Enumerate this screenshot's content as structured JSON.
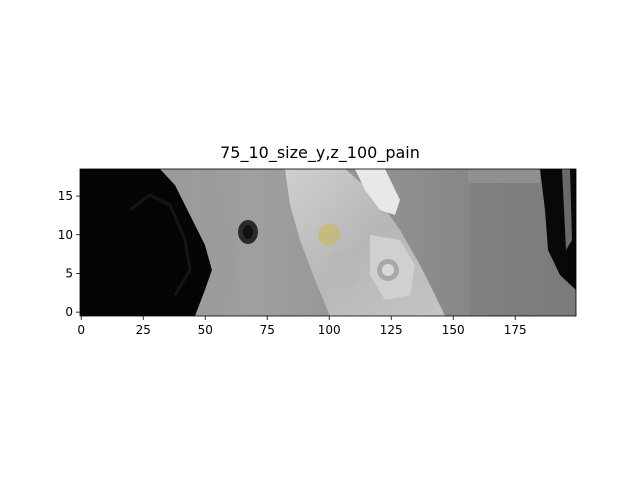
{
  "figure": {
    "title": "75_10_size_y,z_100_pain"
  },
  "axes": {
    "x_ticks": [
      "0",
      "25",
      "50",
      "75",
      "100",
      "125",
      "150",
      "175"
    ],
    "y_ticks": [
      "0",
      "5",
      "10",
      "15"
    ],
    "x_tick_values": [
      0,
      25,
      50,
      75,
      100,
      125,
      150,
      175
    ],
    "y_tick_values": [
      0,
      5,
      10,
      15
    ],
    "xlim": [
      -0.5,
      199.5
    ],
    "ylim": [
      -0.5,
      18.5
    ]
  },
  "image": {
    "description_kind": "grayscale CT slice",
    "marker": {
      "x": 100,
      "y": 10,
      "color": "#c8b850"
    }
  }
}
